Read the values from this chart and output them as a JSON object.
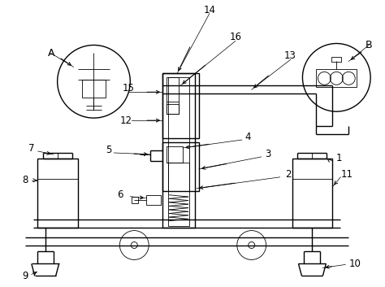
{
  "bg_color": "#ffffff",
  "lc": "#000000",
  "lw": 1.0,
  "tlw": 0.6,
  "fig_width": 4.74,
  "fig_height": 3.53,
  "dpi": 100
}
